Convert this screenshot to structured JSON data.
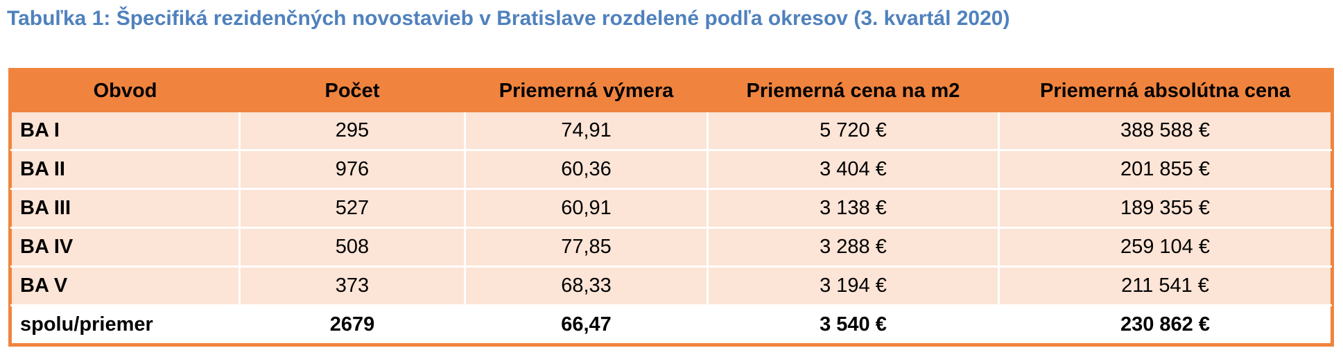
{
  "title": "Tabuľka 1: Špecifiká rezidenčných novostavieb v Bratislave rozdelené podľa okresov (3. kvartál 2020)",
  "table": {
    "headers": [
      "Obvod",
      "Počet",
      "Priemerná výmera",
      "Priemerná cena na m2",
      "Priemerná absolútna cena"
    ],
    "rows": [
      [
        "BA I",
        "295",
        "74,91",
        "5 720 €",
        "388 588 €"
      ],
      [
        "BA II",
        "976",
        "60,36",
        "3 404 €",
        "201 855 €"
      ],
      [
        "BA III",
        "527",
        "60,91",
        "3 138 €",
        "189 355 €"
      ],
      [
        "BA IV",
        "508",
        "77,85",
        "3 288 €",
        "259 104 €"
      ],
      [
        "BA V",
        "373",
        "68,33",
        "3 194 €",
        "211 541 €"
      ]
    ],
    "total": [
      "spolu/priemer",
      "2679",
      "66,47",
      "3 540 €",
      "230 862 €"
    ]
  },
  "colors": {
    "title": "#4f81bd",
    "header_bg": "#f0843e",
    "row_bg": "#fce4d6"
  }
}
